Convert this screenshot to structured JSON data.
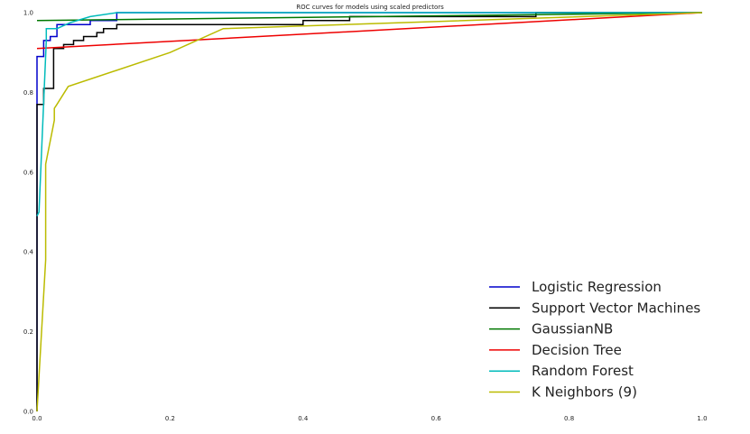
{
  "chart_data": {
    "type": "line",
    "title": "ROC curves for models using scaled predictors",
    "xlabel": "",
    "ylabel": "",
    "xlim": [
      0,
      1
    ],
    "ylim": [
      0,
      1
    ],
    "xticks": [
      "0.0",
      "0.2",
      "0.4",
      "0.6",
      "0.8",
      "1.0"
    ],
    "yticks": [
      "0.0",
      "0.2",
      "0.4",
      "0.6",
      "0.8",
      "1.0"
    ],
    "grid": false,
    "legend_position": "bottom-right",
    "series": [
      {
        "name": "Logistic Regression",
        "color": "#0000cc",
        "points": [
          [
            0,
            0
          ],
          [
            0,
            0.89
          ],
          [
            0.01,
            0.89
          ],
          [
            0.01,
            0.93
          ],
          [
            0.02,
            0.93
          ],
          [
            0.02,
            0.94
          ],
          [
            0.03,
            0.94
          ],
          [
            0.03,
            0.97
          ],
          [
            0.08,
            0.97
          ],
          [
            0.08,
            0.98
          ],
          [
            0.12,
            0.98
          ],
          [
            0.12,
            1.0
          ],
          [
            1.0,
            1.0
          ]
        ]
      },
      {
        "name": "Support Vector Machines",
        "color": "#000000",
        "points": [
          [
            0,
            0
          ],
          [
            0,
            0.77
          ],
          [
            0.01,
            0.77
          ],
          [
            0.01,
            0.81
          ],
          [
            0.025,
            0.81
          ],
          [
            0.025,
            0.91
          ],
          [
            0.04,
            0.91
          ],
          [
            0.04,
            0.92
          ],
          [
            0.055,
            0.92
          ],
          [
            0.055,
            0.93
          ],
          [
            0.07,
            0.93
          ],
          [
            0.07,
            0.94
          ],
          [
            0.09,
            0.94
          ],
          [
            0.09,
            0.95
          ],
          [
            0.1,
            0.95
          ],
          [
            0.1,
            0.96
          ],
          [
            0.12,
            0.96
          ],
          [
            0.12,
            0.97
          ],
          [
            0.4,
            0.97
          ],
          [
            0.4,
            0.98
          ],
          [
            0.47,
            0.98
          ],
          [
            0.47,
            0.99
          ],
          [
            0.75,
            0.99
          ],
          [
            0.75,
            1.0
          ],
          [
            1.0,
            1.0
          ]
        ]
      },
      {
        "name": "GaussianNB",
        "color": "#007700",
        "points": [
          [
            0,
            0.98
          ],
          [
            1.0,
            1.0
          ]
        ]
      },
      {
        "name": "Decision Tree",
        "color": "#ee0000",
        "points": [
          [
            0,
            0.91
          ],
          [
            1.0,
            1.0
          ]
        ]
      },
      {
        "name": "Random Forest",
        "color": "#00bbbb",
        "points": [
          [
            0,
            0.49
          ],
          [
            0.003,
            0.5
          ],
          [
            0.014,
            0.93
          ],
          [
            0.014,
            0.96
          ],
          [
            0.03,
            0.96
          ],
          [
            0.05,
            0.975
          ],
          [
            0.08,
            0.99
          ],
          [
            0.12,
            1.0
          ],
          [
            1.0,
            1.0
          ]
        ]
      },
      {
        "name": "K Neighbors (9)",
        "color": "#bbbb00",
        "points": [
          [
            0,
            0
          ],
          [
            0.013,
            0.38
          ],
          [
            0.013,
            0.62
          ],
          [
            0.026,
            0.73
          ],
          [
            0.026,
            0.76
          ],
          [
            0.03,
            0.77
          ],
          [
            0.047,
            0.815
          ],
          [
            0.2,
            0.9
          ],
          [
            0.28,
            0.96
          ],
          [
            1.0,
            1.0
          ]
        ]
      }
    ]
  }
}
